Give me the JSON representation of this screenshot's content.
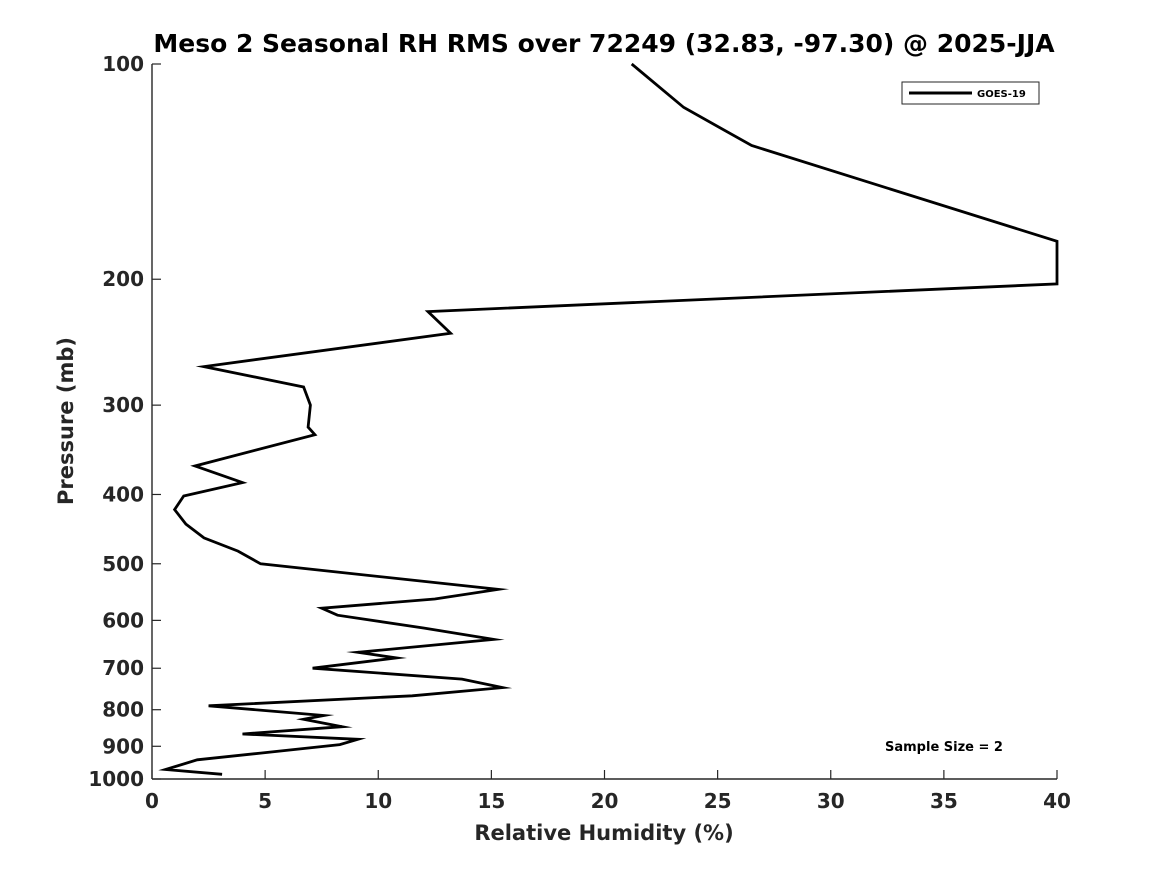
{
  "chart_data": {
    "type": "line",
    "title": "Meso 2 Seasonal RH RMS over 72249 (32.83, -97.30) @ 2025-JJA",
    "xlabel": "Relative Humidity (%)",
    "ylabel": "Pressure (mb)",
    "xlim": [
      0,
      40
    ],
    "ylim": [
      1000,
      100
    ],
    "y_scale": "log",
    "x_ticks": [
      0,
      5,
      10,
      15,
      20,
      25,
      30,
      35,
      40
    ],
    "y_ticks": [
      100,
      200,
      300,
      400,
      500,
      600,
      700,
      800,
      900,
      1000
    ],
    "grid": false,
    "legend_position": "top-right",
    "annotation": "Sample Size = 2",
    "series": [
      {
        "name": "GOES-19",
        "color": "#000000",
        "x": [
          21.2,
          23.5,
          26.5,
          40.0,
          40.0,
          12.2,
          13.2,
          2.3,
          6.7,
          7.0,
          6.9,
          7.2,
          1.9,
          4.0,
          1.4,
          1.0,
          1.5,
          2.3,
          3.8,
          4.8,
          15.3,
          12.5,
          7.5,
          8.2,
          12.0,
          15.1,
          9.1,
          10.8,
          7.1,
          13.7,
          15.5,
          11.5,
          2.5,
          7.6,
          6.7,
          8.4,
          4.0,
          9.1,
          8.3,
          4.8,
          2.0,
          0.6,
          3.1
        ],
        "y": [
          100,
          115,
          130,
          177,
          203,
          222,
          238,
          265,
          283,
          300,
          322,
          330,
          365,
          385,
          402,
          420,
          440,
          460,
          480,
          500,
          543,
          560,
          577,
          590,
          615,
          638,
          665,
          677,
          700,
          725,
          745,
          765,
          790,
          815,
          825,
          845,
          865,
          880,
          895,
          920,
          940,
          970,
          985
        ]
      }
    ]
  }
}
